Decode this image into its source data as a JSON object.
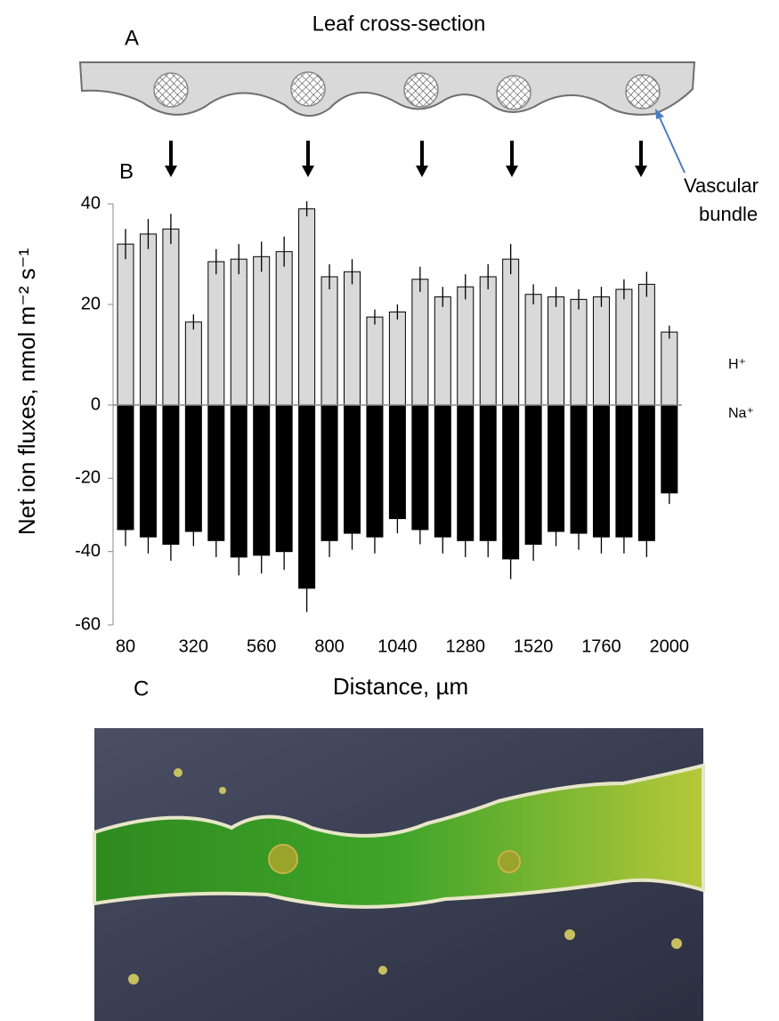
{
  "panels": {
    "a": "A",
    "b": "B",
    "c": "C"
  },
  "diagram": {
    "title": "Leaf cross-section",
    "callout": [
      "Vascular",
      "bundle"
    ]
  },
  "chart_data": {
    "type": "bar",
    "y_label": "Net ion fluxes, nmol m⁻² s⁻¹",
    "x_label": "Distance, µm",
    "categories": [
      80,
      null,
      null,
      320,
      null,
      null,
      560,
      null,
      null,
      800,
      null,
      null,
      1040,
      null,
      null,
      1280,
      null,
      null,
      1520,
      null,
      null,
      1760,
      null,
      null,
      2000
    ],
    "ylim": [
      0,
      40
    ],
    "yticks": [
      0,
      20,
      40
    ],
    "y2lim": [
      -60,
      0
    ],
    "y2ticks": [
      -60,
      -40,
      -20
    ],
    "series": [
      {
        "name": "H⁺",
        "color": "#d9d9d9",
        "values": [
          32,
          34,
          35,
          16.5,
          28.5,
          29,
          29.5,
          30.5,
          39,
          25.5,
          26.5,
          17.5,
          18.5,
          25,
          21.5,
          23.5,
          25.5,
          29,
          22,
          21.5,
          21,
          21.5,
          23,
          24,
          14.5
        ],
        "errors": [
          3,
          3,
          3,
          1.5,
          2.5,
          3,
          3,
          3,
          1.5,
          2.5,
          2.5,
          1.5,
          1.5,
          2.5,
          2,
          2.5,
          2.5,
          3,
          2,
          2,
          2,
          2,
          2,
          2.5,
          1.3
        ]
      },
      {
        "name": "Na⁺",
        "color": "#000000",
        "axis": "y2",
        "values": [
          -34,
          -36,
          -38,
          -34.5,
          -37,
          -41.5,
          -41,
          -40,
          -50,
          -37,
          -35,
          -36,
          -31,
          -34,
          -36,
          -37,
          -37,
          -42,
          -38,
          -34.5,
          -35,
          -36,
          -36,
          -37,
          -24
        ],
        "errors": [
          4.5,
          4.5,
          4.5,
          4,
          4.5,
          5,
          5,
          5,
          6.5,
          4.5,
          4.5,
          4.5,
          4,
          4,
          4.5,
          4.5,
          4.5,
          5.5,
          4.5,
          4,
          4.5,
          4.5,
          4.5,
          4.5,
          3
        ]
      }
    ]
  }
}
